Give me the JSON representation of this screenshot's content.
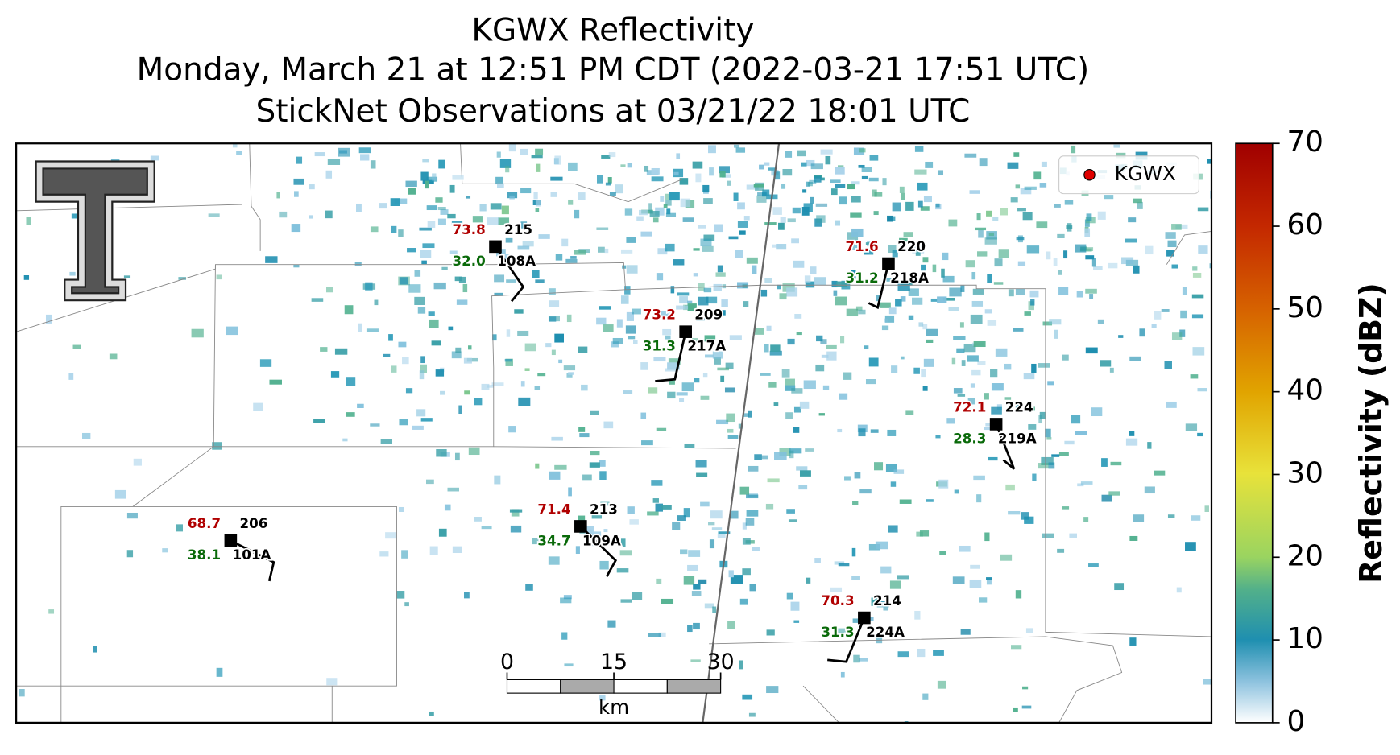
{
  "title": [
    "KGWX Reflectivity",
    "Monday, March 21 at 12:51 PM CDT (2022-03-21 17:51 UTC)",
    "StickNet Observations at 03/21/22 18:01 UTC"
  ],
  "legend": {
    "label": "KGWX",
    "color": "#e00000"
  },
  "stations": [
    {
      "temperature": "73.8",
      "dewpoint": "32.0",
      "id": "215",
      "probe": "108A"
    },
    {
      "temperature": "71.6",
      "dewpoint": "31.2",
      "id": "220",
      "probe": "218A"
    },
    {
      "temperature": "73.2",
      "dewpoint": "31.3",
      "id": "209",
      "probe": "217A"
    },
    {
      "temperature": "72.1",
      "dewpoint": "28.3",
      "id": "224",
      "probe": "219A"
    },
    {
      "temperature": "68.7",
      "dewpoint": "38.1",
      "id": "206",
      "probe": "101A"
    },
    {
      "temperature": "71.4",
      "dewpoint": "34.7",
      "id": "213",
      "probe": "109A"
    },
    {
      "temperature": "70.3",
      "dewpoint": "31.3",
      "id": "214",
      "probe": "224A"
    }
  ],
  "colorbar": {
    "label": "Reflectivity (dBZ)",
    "lim": [
      0,
      70
    ],
    "ticks": [
      0,
      10,
      20,
      30,
      40,
      50,
      60,
      70
    ]
  },
  "scale_bar": {
    "unit": "km",
    "lim": [
      0,
      30
    ],
    "ticks": [
      0,
      15,
      30
    ]
  }
}
